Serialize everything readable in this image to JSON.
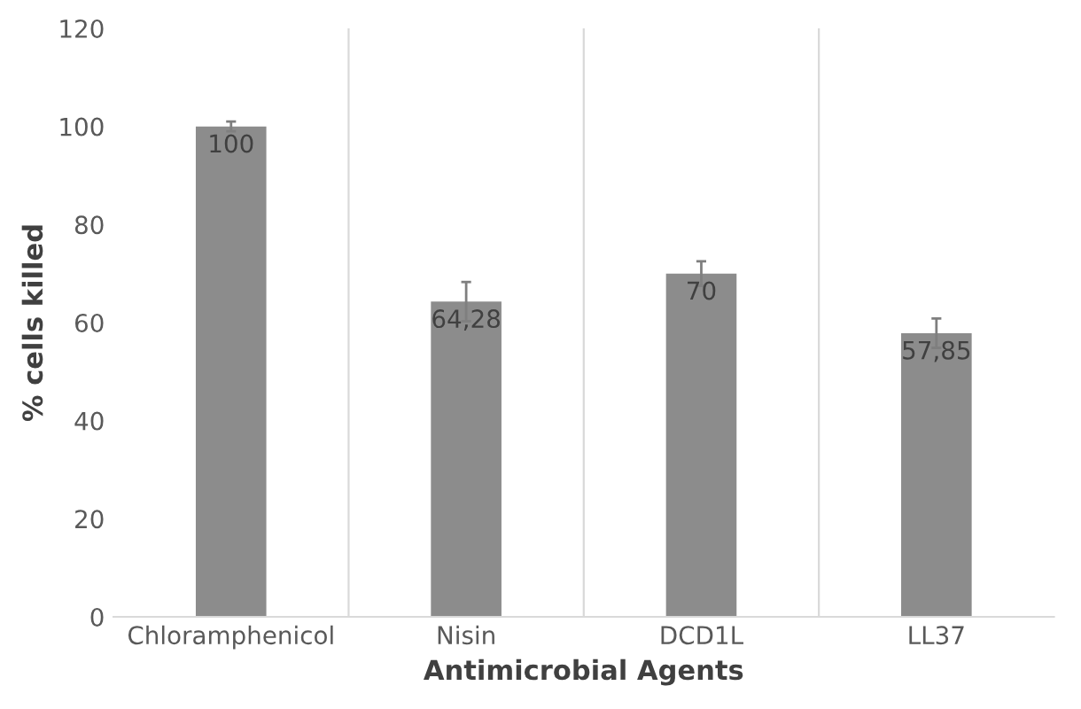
{
  "chart_data": {
    "type": "bar",
    "xlabel": "Antimicrobial Agents",
    "ylabel": "% cells killed",
    "categories": [
      "Chloramphenicol",
      "Nisin",
      "DCD1L",
      "LL37"
    ],
    "values": [
      100,
      64.28,
      70,
      57.85
    ],
    "value_labels": [
      "100",
      "64,28",
      "70",
      "57,85"
    ],
    "errors": [
      1,
      4,
      2.5,
      3
    ],
    "color": "#8c8c8c",
    "ylim": [
      0,
      120
    ],
    "yticks": [
      0,
      20,
      40,
      60,
      80,
      100,
      120
    ],
    "grid": "x"
  }
}
